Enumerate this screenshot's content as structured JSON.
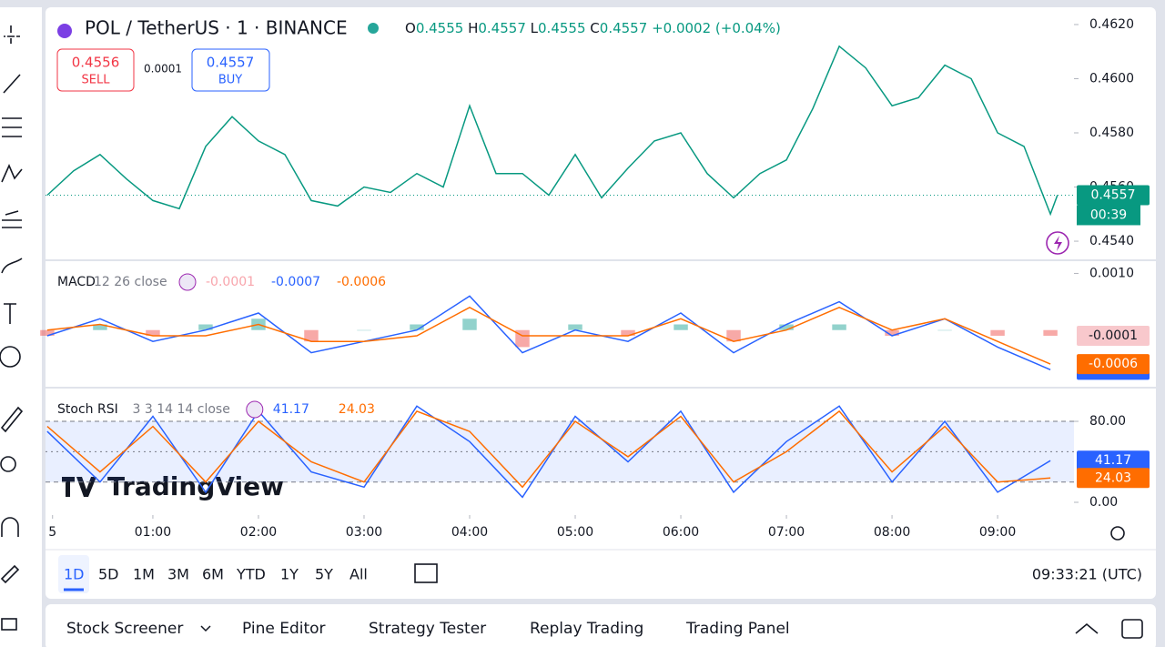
{
  "header": {
    "symbol": "POL / TetherUS · 1 · BINANCE",
    "ohlc": [
      {
        "label": "O",
        "value": "0.4555"
      },
      {
        "label": "H",
        "value": "0.4557"
      },
      {
        "label": "L",
        "value": "0.4555"
      },
      {
        "label": "C",
        "value": "0.4557"
      }
    ],
    "change": "+0.0002",
    "change_pct": "(+0.04%)"
  },
  "trade": {
    "sell_price": "0.4556",
    "sell": "SELL",
    "spread": "0.0001",
    "buy_price": "0.4557",
    "buy": "BUY"
  },
  "watermark": "TradingView",
  "chart_data": [
    {
      "type": "line",
      "countdown": "00:39",
      "x": [
        0,
        15,
        30,
        45,
        60,
        75,
        90,
        105,
        120,
        135,
        150,
        165,
        180,
        195,
        210,
        225,
        240,
        255,
        270,
        285,
        300,
        315,
        330,
        345,
        360,
        375,
        390,
        405,
        420,
        435,
        450,
        465,
        480,
        495,
        510,
        525,
        540,
        555,
        570,
        574
      ],
      "series": [
        {
          "color": "#089981",
          "values": [
            0.4557,
            0.4566,
            0.4572,
            0.4563,
            0.4555,
            0.4552,
            0.4575,
            0.4586,
            0.4577,
            0.4572,
            0.4555,
            0.4553,
            0.456,
            0.4558,
            0.4565,
            0.456,
            0.459,
            0.4565,
            0.4565,
            0.4557,
            0.4572,
            0.4556,
            0.4567,
            0.4577,
            0.458,
            0.4565,
            0.4556,
            0.4565,
            0.457,
            0.4589,
            0.4612,
            0.4604,
            0.459,
            0.4593,
            0.4605,
            0.46,
            0.458,
            0.4575,
            0.455,
            0.4557
          ]
        }
      ],
      "xlim": [
        -1,
        583.4
      ],
      "ylim": [
        0.45333,
        0.46257
      ],
      "yticks": [
        {
          "value": 0.454,
          "label": "0.4540"
        },
        {
          "value": 0.456,
          "label": "0.4560"
        },
        {
          "value": 0.458,
          "label": "0.4580"
        },
        {
          "value": 0.46,
          "label": "0.4600"
        },
        {
          "value": 0.462,
          "label": "0.4620"
        }
      ]
    },
    {
      "type": "line",
      "title": "MACD",
      "params": "12 26 close",
      "x": [
        0,
        30,
        60,
        90,
        120,
        150,
        180,
        210,
        240,
        270,
        300,
        330,
        360,
        390,
        420,
        450,
        480,
        510,
        540,
        570
      ],
      "series": [
        {
          "type": "bar",
          "color": "#26a69a",
          "negative_color": "#ef5350",
          "values": [
            -0.0001,
            0.0001,
            -0.0001,
            0.0001,
            0.0002,
            -0.0002,
            0,
            0.0001,
            0.0002,
            -0.0003,
            0.0001,
            -0.0001,
            0.0001,
            -0.0002,
            0.0001,
            0.0001,
            -0.0001,
            0,
            -0.0001,
            -0.0001
          ]
        },
        {
          "color": "#2962ff",
          "values": [
            -0.0001,
            0.0002,
            -0.0002,
            0,
            0.0003,
            -0.0004,
            -0.0002,
            0,
            0.0006,
            -0.0004,
            0,
            -0.0002,
            0.0003,
            -0.0004,
            0.0001,
            0.0005,
            -0.0001,
            0.0002,
            -0.0003,
            -0.0007
          ]
        },
        {
          "color": "#ff6d00",
          "values": [
            0,
            0.0001,
            -0.0001,
            -0.0001,
            0.0001,
            -0.0002,
            -0.0002,
            -0.0001,
            0.0004,
            -0.0001,
            -0.0001,
            -0.0001,
            0.0002,
            -0.0002,
            0,
            0.0004,
            0,
            0.0002,
            -0.0002,
            -0.0006
          ]
        }
      ],
      "xlim": [
        -1,
        583.4
      ],
      "ylim": [
        -0.001,
        0.0012
      ],
      "yticks": [
        {
          "value": 0.001,
          "label": "0.0010"
        }
      ]
    },
    {
      "type": "line",
      "title": "Stoch RSI",
      "params": "3 3 14 14 close",
      "x": [
        0,
        30,
        60,
        90,
        120,
        150,
        180,
        210,
        240,
        270,
        300,
        330,
        360,
        390,
        420,
        450,
        480,
        510,
        540,
        570
      ],
      "series": [
        {
          "color": "#2962ff",
          "values": [
            70,
            20,
            85,
            10,
            90,
            30,
            15,
            95,
            60,
            5,
            85,
            40,
            90,
            10,
            60,
            95,
            20,
            80,
            10,
            41.17
          ]
        },
        {
          "color": "#ff6d00",
          "values": [
            75,
            30,
            75,
            20,
            80,
            40,
            20,
            90,
            70,
            15,
            80,
            45,
            85,
            20,
            50,
            90,
            30,
            75,
            20,
            24.03
          ]
        }
      ],
      "band": [
        20,
        80
      ],
      "midline": 50,
      "xlim": [
        -1,
        583.4
      ],
      "ylim": [
        -11.7,
        111.5
      ],
      "yticks": [
        {
          "value": 0,
          "label": "0.00"
        },
        {
          "value": 80,
          "label": "80.00"
        }
      ],
      "xticks": [
        {
          "value": 3,
          "label": "5"
        },
        {
          "value": 60,
          "label": "01:00"
        },
        {
          "value": 120,
          "label": "02:00"
        },
        {
          "value": 180,
          "label": "03:00"
        },
        {
          "value": 240,
          "label": "04:00"
        },
        {
          "value": 300,
          "label": "05:00"
        },
        {
          "value": 360,
          "label": "06:00"
        },
        {
          "value": 420,
          "label": "07:00"
        },
        {
          "value": 480,
          "label": "08:00"
        },
        {
          "value": 540,
          "label": "09:00"
        }
      ]
    }
  ],
  "range_buttons": [
    "1D",
    "5D",
    "1M",
    "3M",
    "6M",
    "YTD",
    "1Y",
    "5Y",
    "All"
  ],
  "clock": "09:33:21 (UTC)",
  "bottom_tabs": [
    "Stock Screener",
    "Pine Editor",
    "Strategy Tester",
    "Replay Trading",
    "Trading Panel"
  ]
}
